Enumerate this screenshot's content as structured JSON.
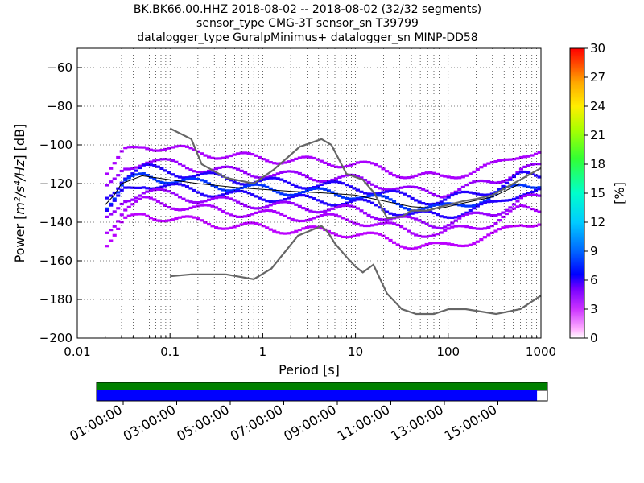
{
  "title_lines": [
    "BK.BK66.00.HHZ   2018-08-02 -- 2018-08-02  (32/32 segments)",
    "sensor_type CMG-3T sensor_sn T39799",
    "datalogger_type GuralpMinimus+ datalogger_sn MINP-DD58"
  ],
  "chart_data": {
    "type": "heatmap",
    "xlabel": "Period [s]",
    "ylabel": "Power [m²/s⁴/Hz] [dB]",
    "ylabel_parts": {
      "prefix": "Power [",
      "math": "m²/s⁴/Hz",
      "suffix": "] [dB]"
    },
    "xscale": "log",
    "xlim": [
      0.01,
      1000
    ],
    "ylim": [
      -200,
      -50
    ],
    "x_ticks": [
      0.01,
      0.1,
      1,
      10,
      100,
      1000
    ],
    "x_tick_labels": [
      "0.01",
      "0.1",
      "1",
      "10",
      "100",
      "1000"
    ],
    "y_ticks": [
      -60,
      -80,
      -100,
      -120,
      -140,
      -160,
      -180,
      -200
    ],
    "y_tick_labels": [
      "−60",
      "−80",
      "−100",
      "−120",
      "−140",
      "−160",
      "−180",
      "−200"
    ],
    "grid": true,
    "colorbar": {
      "label": "[%]",
      "range": [
        0,
        30
      ],
      "ticks": [
        0,
        3,
        6,
        9,
        12,
        15,
        18,
        21,
        24,
        27,
        30
      ],
      "tick_labels": [
        "0",
        "3",
        "6",
        "9",
        "12",
        "15",
        "18",
        "21",
        "24",
        "27",
        "30"
      ]
    },
    "noise_models": [
      {
        "name": "NHNM",
        "x": [
          0.1,
          0.17,
          0.22,
          0.4,
          0.8,
          1.3,
          2.5,
          4.3,
          5.5,
          8,
          12,
          16,
          22,
          32,
          40,
          60,
          100,
          150,
          200,
          300,
          600,
          1000
        ],
        "y": [
          -91.5,
          -97,
          -110,
          -117,
          -120,
          -113,
          -101,
          -97,
          -100,
          -115,
          -118,
          -125,
          -138,
          -137,
          -134,
          -134,
          -131,
          -129,
          -128,
          -126,
          -118,
          -112
        ]
      },
      {
        "name": "NLNM",
        "x": [
          0.1,
          0.17,
          0.4,
          0.8,
          1.24,
          2.4,
          4.3,
          5,
          6,
          8,
          10,
          12,
          15.6,
          21.9,
          31.6,
          45,
          70,
          101,
          154,
          328,
          600,
          1000
        ],
        "y": [
          -168,
          -167,
          -167,
          -169.5,
          -164,
          -147,
          -142,
          -145,
          -151,
          -158,
          -163,
          -166,
          -162,
          -177,
          -185,
          -187.5,
          -187.5,
          -185,
          -185,
          -187.5,
          -185,
          -178
        ]
      }
    ],
    "median": {
      "x": [
        0.02,
        0.025,
        0.03,
        0.05,
        0.1,
        0.2,
        0.5,
        1,
        2,
        5,
        10,
        20,
        40,
        80,
        150,
        300,
        600
      ],
      "y": [
        -131,
        -126,
        -120,
        -116,
        -118,
        -120,
        -122,
        -123,
        -124,
        -125,
        -126,
        -129,
        -132,
        -133,
        -130,
        -127,
        -120
      ]
    },
    "psd_bands": [
      {
        "y_offset": 16,
        "color": "#aa00ff"
      },
      {
        "y_offset": 8,
        "color": "#9900ff"
      },
      {
        "y_offset": 4,
        "color": "#2200ff"
      },
      {
        "y_offset": 0,
        "color": "#0033ff"
      },
      {
        "y_offset": -4,
        "color": "#2200ff"
      },
      {
        "y_offset": -8,
        "color": "#9900ff"
      },
      {
        "y_offset": -13,
        "color": "#aa00ff"
      },
      {
        "y_offset": -20,
        "color": "#bb00ff"
      }
    ]
  },
  "data_availability": {
    "start_label_times": [
      "01:00:00",
      "03:00:00",
      "05:00:00",
      "07:00:00",
      "09:00:00",
      "11:00:00",
      "13:00:00",
      "15:00:00"
    ],
    "colors": {
      "top": "#008000",
      "bottom": "#0000ff"
    },
    "coverage_fraction": 0.977
  }
}
